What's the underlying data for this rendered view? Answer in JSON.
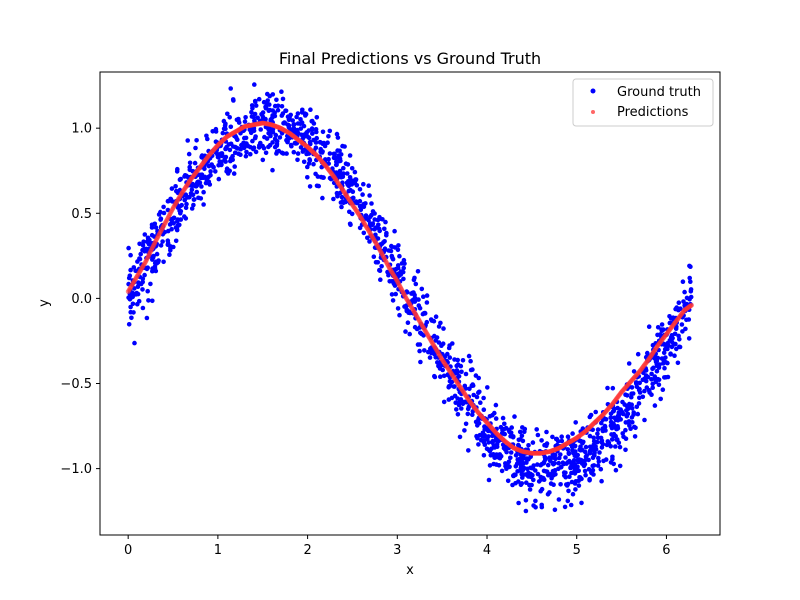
{
  "chart_data": {
    "type": "scatter",
    "title": "Final Predictions vs Ground Truth",
    "xlabel": "x",
    "ylabel": "y",
    "xlim": [
      -0.314,
      6.597
    ],
    "ylim": [
      -1.39,
      1.33
    ],
    "xticks": [
      0,
      1,
      2,
      3,
      4,
      5,
      6
    ],
    "xtick_labels": [
      "0",
      "1",
      "2",
      "3",
      "4",
      "5",
      "6"
    ],
    "yticks": [
      -1.0,
      -0.5,
      0.0,
      0.5,
      1.0
    ],
    "ytick_labels": [
      "−1.0",
      "−0.5",
      "0.0",
      "0.5",
      "1.0"
    ],
    "grid": false,
    "legend_position": "top-right",
    "series": [
      {
        "name": "Ground truth",
        "color": "#0000ff",
        "noise_std": 0.1,
        "x": [
          0.0,
          0.05,
          0.1,
          0.15,
          0.2,
          0.25,
          0.3,
          0.35,
          0.4,
          0.45,
          0.5,
          0.55,
          0.6,
          0.65,
          0.7,
          0.75,
          0.8,
          0.85,
          0.9,
          0.95,
          1.0,
          1.05,
          1.1,
          1.15,
          1.2,
          1.25,
          1.3,
          1.35,
          1.4,
          1.45,
          1.5,
          1.55,
          1.6,
          1.65,
          1.7,
          1.75,
          1.8,
          1.85,
          1.9,
          1.95,
          2.0,
          2.05,
          2.1,
          2.15,
          2.2,
          2.25,
          2.3,
          2.35,
          2.4,
          2.45,
          2.5,
          2.55,
          2.6,
          2.65,
          2.7,
          2.75,
          2.8,
          2.85,
          2.9,
          2.95,
          3.0,
          3.05,
          3.1,
          3.15,
          3.2,
          3.25,
          3.3,
          3.35,
          3.4,
          3.45,
          3.5,
          3.55,
          3.6,
          3.65,
          3.7,
          3.75,
          3.8,
          3.85,
          3.9,
          3.95,
          4.0,
          4.05,
          4.1,
          4.15,
          4.2,
          4.25,
          4.3,
          4.35,
          4.4,
          4.45,
          4.5,
          4.55,
          4.6,
          4.65,
          4.7,
          4.75,
          4.8,
          4.85,
          4.9,
          4.95,
          5.0,
          5.05,
          5.1,
          5.15,
          5.2,
          5.25,
          5.3,
          5.35,
          5.4,
          5.45,
          5.5,
          5.55,
          5.6,
          5.65,
          5.7,
          5.75,
          5.8,
          5.85,
          5.9,
          5.95,
          6.0,
          6.05,
          6.1,
          6.15,
          6.2,
          6.25,
          6.28
        ],
        "y": [
          0.02,
          0.06,
          0.12,
          0.16,
          0.21,
          0.25,
          0.3,
          0.35,
          0.39,
          0.44,
          0.48,
          0.53,
          0.57,
          0.61,
          0.65,
          0.69,
          0.72,
          0.76,
          0.79,
          0.82,
          0.85,
          0.87,
          0.9,
          0.92,
          0.94,
          0.96,
          0.97,
          0.98,
          0.99,
          1.0,
          1.0,
          1.0,
          1.0,
          1.0,
          0.99,
          0.98,
          0.97,
          0.96,
          0.95,
          0.93,
          0.91,
          0.89,
          0.86,
          0.84,
          0.81,
          0.78,
          0.75,
          0.71,
          0.68,
          0.64,
          0.6,
          0.56,
          0.52,
          0.47,
          0.43,
          0.38,
          0.33,
          0.29,
          0.24,
          0.19,
          0.14,
          0.09,
          0.04,
          -0.01,
          -0.06,
          -0.11,
          -0.16,
          -0.21,
          -0.26,
          -0.31,
          -0.35,
          -0.4,
          -0.44,
          -0.49,
          -0.53,
          -0.57,
          -0.61,
          -0.65,
          -0.69,
          -0.72,
          -0.76,
          -0.79,
          -0.82,
          -0.85,
          -0.87,
          -0.9,
          -0.92,
          -0.94,
          -0.95,
          -0.97,
          -0.98,
          -0.99,
          -1.0,
          -1.0,
          -1.0,
          -1.0,
          -1.0,
          -0.99,
          -0.98,
          -0.97,
          -0.96,
          -0.94,
          -0.93,
          -0.91,
          -0.88,
          -0.86,
          -0.83,
          -0.8,
          -0.77,
          -0.74,
          -0.71,
          -0.67,
          -0.63,
          -0.59,
          -0.55,
          -0.51,
          -0.46,
          -0.42,
          -0.37,
          -0.32,
          -0.28,
          -0.23,
          -0.18,
          -0.13,
          -0.08,
          -0.03,
          0.0
        ]
      },
      {
        "name": "Predictions",
        "color": "#ff3333",
        "x": [
          0.0,
          0.1,
          0.2,
          0.3,
          0.4,
          0.5,
          0.6,
          0.7,
          0.8,
          0.9,
          1.0,
          1.1,
          1.2,
          1.3,
          1.4,
          1.5,
          1.6,
          1.7,
          1.8,
          1.9,
          2.0,
          2.1,
          2.2,
          2.3,
          2.4,
          2.5,
          2.6,
          2.7,
          2.8,
          2.9,
          3.0,
          3.1,
          3.2,
          3.3,
          3.4,
          3.5,
          3.6,
          3.7,
          3.8,
          3.9,
          4.0,
          4.1,
          4.2,
          4.3,
          4.4,
          4.5,
          4.6,
          4.7,
          4.8,
          4.9,
          5.0,
          5.1,
          5.2,
          5.3,
          5.4,
          5.5,
          5.6,
          5.7,
          5.8,
          5.9,
          6.0,
          6.1,
          6.2,
          6.28
        ],
        "y": [
          0.04,
          0.13,
          0.22,
          0.33,
          0.43,
          0.53,
          0.62,
          0.7,
          0.77,
          0.84,
          0.9,
          0.95,
          0.98,
          1.01,
          1.02,
          1.03,
          1.02,
          1.0,
          0.97,
          0.93,
          0.89,
          0.84,
          0.78,
          0.71,
          0.63,
          0.55,
          0.47,
          0.38,
          0.29,
          0.19,
          0.1,
          0.0,
          -0.09,
          -0.18,
          -0.27,
          -0.36,
          -0.44,
          -0.52,
          -0.6,
          -0.67,
          -0.73,
          -0.79,
          -0.84,
          -0.88,
          -0.9,
          -0.91,
          -0.91,
          -0.9,
          -0.88,
          -0.85,
          -0.82,
          -0.78,
          -0.73,
          -0.68,
          -0.62,
          -0.55,
          -0.49,
          -0.43,
          -0.36,
          -0.28,
          -0.21,
          -0.14,
          -0.07,
          -0.04
        ]
      }
    ]
  }
}
